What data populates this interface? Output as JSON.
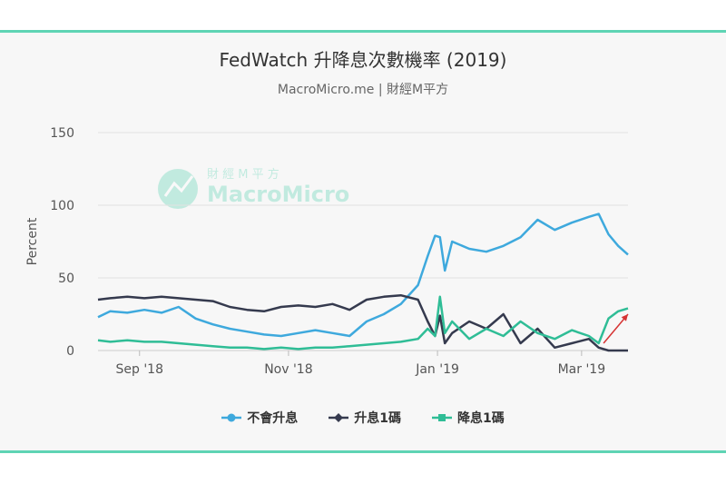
{
  "title": "FedWatch 升降息次數機率 (2019)",
  "subtitle": "MacroMicro.me | 財經M平方",
  "watermark": {
    "top": "財 經 M 平 方",
    "bottom": "MacroMicro"
  },
  "chart_data": {
    "type": "line",
    "title": "FedWatch 升降息次數機率 (2019)",
    "subtitle": "MacroMicro.me | 財經M平方",
    "ylabel": "Percent",
    "ylim": [
      0,
      150
    ],
    "yticks": [
      0,
      50,
      100,
      150
    ],
    "xlim": [
      "2018-08-15",
      "2019-03-20"
    ],
    "xticks": [
      {
        "date": "2018-09-01",
        "label": "Sep '18"
      },
      {
        "date": "2018-11-01",
        "label": "Nov '18"
      },
      {
        "date": "2019-01-01",
        "label": "Jan '19"
      },
      {
        "date": "2019-03-01",
        "label": "Mar '19"
      }
    ],
    "legend_position": "bottom",
    "series": [
      {
        "name": "不會升息",
        "color": "#3ea9dd",
        "marker": "circle",
        "points": [
          [
            "2018-08-15",
            23
          ],
          [
            "2018-08-20",
            27
          ],
          [
            "2018-08-27",
            26
          ],
          [
            "2018-09-03",
            28
          ],
          [
            "2018-09-10",
            26
          ],
          [
            "2018-09-17",
            30
          ],
          [
            "2018-09-24",
            22
          ],
          [
            "2018-10-01",
            18
          ],
          [
            "2018-10-08",
            15
          ],
          [
            "2018-10-15",
            13
          ],
          [
            "2018-10-22",
            11
          ],
          [
            "2018-10-29",
            10
          ],
          [
            "2018-11-05",
            12
          ],
          [
            "2018-11-12",
            14
          ],
          [
            "2018-11-19",
            12
          ],
          [
            "2018-11-26",
            10
          ],
          [
            "2018-12-03",
            20
          ],
          [
            "2018-12-10",
            25
          ],
          [
            "2018-12-17",
            32
          ],
          [
            "2018-12-24",
            45
          ],
          [
            "2018-12-28",
            65
          ],
          [
            "2018-12-31",
            79
          ],
          [
            "2019-01-02",
            78
          ],
          [
            "2019-01-04",
            55
          ],
          [
            "2019-01-07",
            75
          ],
          [
            "2019-01-14",
            70
          ],
          [
            "2019-01-21",
            68
          ],
          [
            "2019-01-28",
            72
          ],
          [
            "2019-02-04",
            78
          ],
          [
            "2019-02-11",
            90
          ],
          [
            "2019-02-18",
            83
          ],
          [
            "2019-02-25",
            88
          ],
          [
            "2019-03-04",
            92
          ],
          [
            "2019-03-08",
            94
          ],
          [
            "2019-03-12",
            80
          ],
          [
            "2019-03-16",
            72
          ],
          [
            "2019-03-20",
            66
          ]
        ]
      },
      {
        "name": "升息1碼",
        "color": "#353a4e",
        "marker": "diamond",
        "points": [
          [
            "2018-08-15",
            35
          ],
          [
            "2018-08-20",
            36
          ],
          [
            "2018-08-27",
            37
          ],
          [
            "2018-09-03",
            36
          ],
          [
            "2018-09-10",
            37
          ],
          [
            "2018-09-17",
            36
          ],
          [
            "2018-09-24",
            35
          ],
          [
            "2018-10-01",
            34
          ],
          [
            "2018-10-08",
            30
          ],
          [
            "2018-10-15",
            28
          ],
          [
            "2018-10-22",
            27
          ],
          [
            "2018-10-29",
            30
          ],
          [
            "2018-11-05",
            31
          ],
          [
            "2018-11-12",
            30
          ],
          [
            "2018-11-19",
            32
          ],
          [
            "2018-11-26",
            28
          ],
          [
            "2018-12-03",
            35
          ],
          [
            "2018-12-10",
            37
          ],
          [
            "2018-12-17",
            38
          ],
          [
            "2018-12-24",
            35
          ],
          [
            "2018-12-28",
            20
          ],
          [
            "2018-12-31",
            10
          ],
          [
            "2019-01-02",
            24
          ],
          [
            "2019-01-04",
            5
          ],
          [
            "2019-01-07",
            12
          ],
          [
            "2019-01-14",
            20
          ],
          [
            "2019-01-21",
            15
          ],
          [
            "2019-01-28",
            25
          ],
          [
            "2019-02-04",
            5
          ],
          [
            "2019-02-11",
            15
          ],
          [
            "2019-02-18",
            2
          ],
          [
            "2019-02-25",
            5
          ],
          [
            "2019-03-04",
            8
          ],
          [
            "2019-03-08",
            2
          ],
          [
            "2019-03-12",
            0
          ],
          [
            "2019-03-16",
            0
          ],
          [
            "2019-03-20",
            0
          ]
        ]
      },
      {
        "name": "降息1碼",
        "color": "#2fbd96",
        "marker": "square",
        "points": [
          [
            "2018-08-15",
            7
          ],
          [
            "2018-08-20",
            6
          ],
          [
            "2018-08-27",
            7
          ],
          [
            "2018-09-03",
            6
          ],
          [
            "2018-09-10",
            6
          ],
          [
            "2018-09-17",
            5
          ],
          [
            "2018-09-24",
            4
          ],
          [
            "2018-10-01",
            3
          ],
          [
            "2018-10-08",
            2
          ],
          [
            "2018-10-15",
            2
          ],
          [
            "2018-10-22",
            1
          ],
          [
            "2018-10-29",
            2
          ],
          [
            "2018-11-05",
            1
          ],
          [
            "2018-11-12",
            2
          ],
          [
            "2018-11-19",
            2
          ],
          [
            "2018-11-26",
            3
          ],
          [
            "2018-12-03",
            4
          ],
          [
            "2018-12-10",
            5
          ],
          [
            "2018-12-17",
            6
          ],
          [
            "2018-12-24",
            8
          ],
          [
            "2018-12-28",
            15
          ],
          [
            "2018-12-31",
            10
          ],
          [
            "2019-01-02",
            37
          ],
          [
            "2019-01-04",
            12
          ],
          [
            "2019-01-07",
            20
          ],
          [
            "2019-01-14",
            8
          ],
          [
            "2019-01-21",
            15
          ],
          [
            "2019-01-28",
            10
          ],
          [
            "2019-02-04",
            20
          ],
          [
            "2019-02-11",
            12
          ],
          [
            "2019-02-18",
            8
          ],
          [
            "2019-02-25",
            14
          ],
          [
            "2019-03-04",
            10
          ],
          [
            "2019-03-08",
            5
          ],
          [
            "2019-03-12",
            22
          ],
          [
            "2019-03-16",
            27
          ],
          [
            "2019-03-20",
            29
          ]
        ]
      }
    ],
    "annotation": {
      "type": "arrow",
      "color": "#d63333",
      "from": [
        "2019-03-10",
        5
      ],
      "to": [
        "2019-03-20",
        25
      ]
    }
  }
}
